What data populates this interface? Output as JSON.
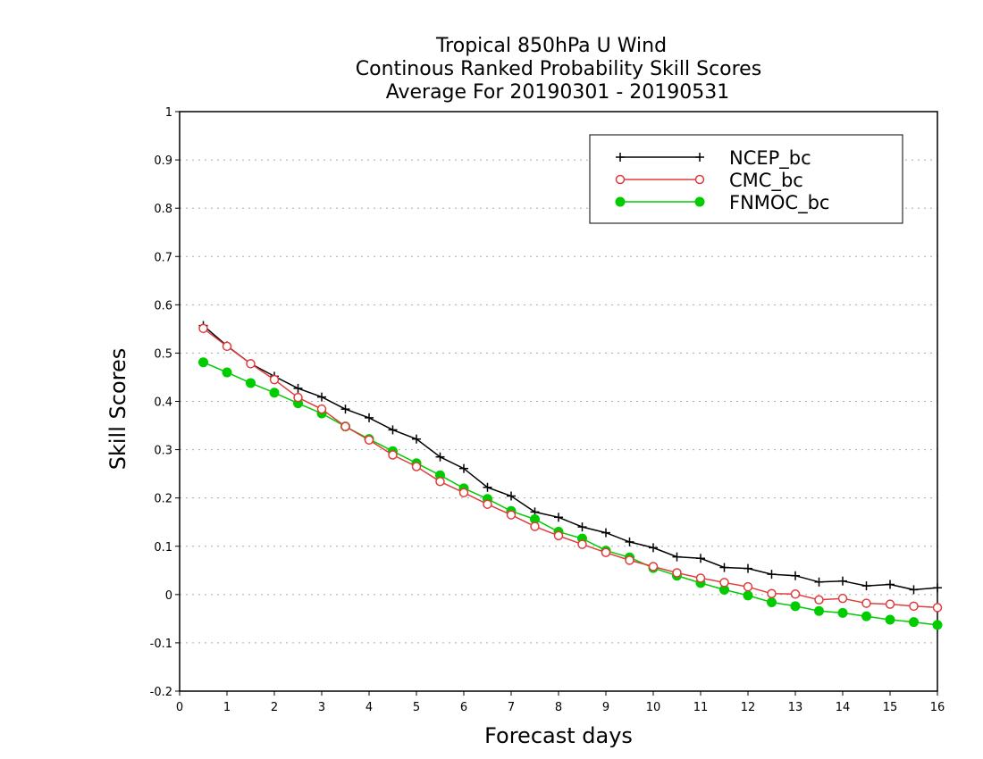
{
  "chart_data": {
    "type": "line",
    "title_lines": [
      "Tropical 850hPa U Wind",
      "Continous Ranked Probability Skill Scores",
      "Average For 20190301 - 20190531"
    ],
    "xlabel": "Forecast days",
    "ylabel": "Skill Scores",
    "xlim": [
      0,
      16
    ],
    "ylim": [
      -0.2,
      1
    ],
    "x_ticks": [
      0,
      1,
      2,
      3,
      4,
      5,
      6,
      7,
      8,
      9,
      10,
      11,
      12,
      13,
      14,
      15,
      16
    ],
    "y_ticks": [
      -0.2,
      -0.1,
      0,
      0.1,
      0.2,
      0.3,
      0.4,
      0.5,
      0.6,
      0.7,
      0.8,
      0.9,
      1
    ],
    "y_tick_labels": [
      "-0.2",
      "-0.1",
      "0",
      "0.1",
      "0.2",
      "0.3",
      "0.4",
      "0.5",
      "0.6",
      "0.7",
      "0.8",
      "0.9",
      "1"
    ],
    "grid": true,
    "legend_position": "top-right",
    "x": [
      0.5,
      1,
      1.5,
      2,
      2.5,
      3,
      3.5,
      4,
      4.5,
      5,
      5.5,
      6,
      6.5,
      7,
      7.5,
      8,
      8.5,
      9,
      9.5,
      10,
      10.5,
      11,
      11.5,
      12,
      12.5,
      13,
      13.5,
      14,
      14.5,
      15,
      15.5,
      16
    ],
    "series": [
      {
        "name": "NCEP_bc",
        "color": "#000000",
        "marker": "plus",
        "values": [
          0.557,
          0.515,
          0.478,
          0.452,
          0.427,
          0.409,
          0.384,
          0.366,
          0.341,
          0.322,
          0.285,
          0.261,
          0.222,
          0.204,
          0.171,
          0.16,
          0.14,
          0.128,
          0.109,
          0.097,
          0.078,
          0.075,
          0.056,
          0.054,
          0.042,
          0.039,
          0.026,
          0.028,
          0.018,
          0.021,
          0.01,
          0.014
        ]
      },
      {
        "name": "CMC_bc",
        "color": "#e03c3c",
        "marker": "open-circle",
        "values": [
          0.551,
          0.514,
          0.478,
          0.445,
          0.408,
          0.384,
          0.348,
          0.32,
          0.289,
          0.265,
          0.234,
          0.211,
          0.187,
          0.165,
          0.141,
          0.122,
          0.104,
          0.087,
          0.071,
          0.058,
          0.045,
          0.034,
          0.025,
          0.016,
          0.002,
          0.001,
          -0.011,
          -0.008,
          -0.018,
          -0.02,
          -0.024,
          -0.027
        ]
      },
      {
        "name": "FNMOC_bc",
        "color": "#00cc00",
        "marker": "filled-circle",
        "values": [
          0.481,
          0.46,
          0.438,
          0.418,
          0.396,
          0.375,
          0.348,
          0.322,
          0.297,
          0.272,
          0.247,
          0.22,
          0.198,
          0.173,
          0.156,
          0.13,
          0.116,
          0.091,
          0.077,
          0.055,
          0.039,
          0.024,
          0.01,
          -0.002,
          -0.016,
          -0.024,
          -0.034,
          -0.038,
          -0.045,
          -0.052,
          -0.057,
          -0.063
        ]
      }
    ]
  }
}
